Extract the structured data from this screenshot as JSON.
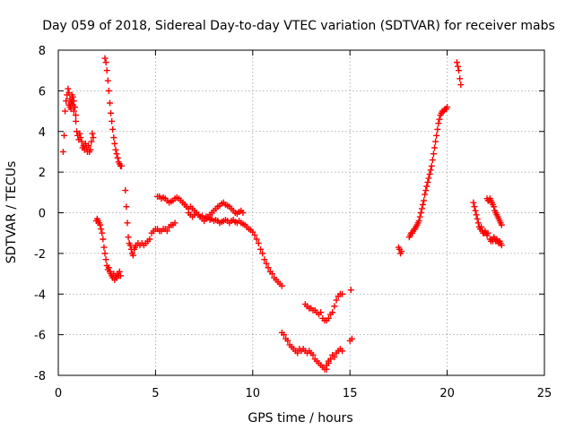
{
  "chart_data": {
    "type": "scatter",
    "title": "Day 059 of 2018, Sidereal Day-to-day VTEC variation (SDTVAR) for receiver mabs",
    "xlabel": "GPS time / hours",
    "ylabel": "SDTVAR / TECUs",
    "xlim": [
      0,
      25
    ],
    "ylim": [
      -8,
      8
    ],
    "xticks": [
      0,
      5,
      10,
      15,
      20,
      25
    ],
    "yticks": [
      -8,
      -6,
      -4,
      -2,
      0,
      2,
      4,
      6,
      8
    ],
    "xtick_labels": [
      "0",
      "5",
      "10",
      "15",
      "20",
      "25"
    ],
    "ytick_labels": [
      "-8",
      "-6",
      "-4",
      "-2",
      "0",
      "2",
      "4",
      "6",
      "8"
    ],
    "grid": true,
    "marker": "+",
    "marker_color": "#ff0000",
    "series": [
      {
        "name": "s1",
        "x": [
          0.25,
          0.3,
          0.35,
          0.4,
          0.45,
          0.5,
          0.55,
          0.6,
          0.65,
          0.7,
          0.75,
          0.8,
          0.85,
          0.9
        ],
        "y": [
          3.0,
          3.8,
          5.0,
          5.5,
          5.8,
          6.1,
          5.9,
          5.6,
          5.4,
          5.8,
          5.7,
          5.5,
          5.2,
          4.8
        ]
      },
      {
        "name": "s2",
        "x": [
          0.55,
          0.6,
          0.65,
          0.7,
          0.75,
          0.8,
          0.85,
          0.9,
          0.95,
          1.0,
          1.05,
          1.1,
          1.15,
          1.2,
          1.25,
          1.3,
          1.35,
          1.4,
          1.45,
          1.5,
          1.55,
          1.6,
          1.65,
          1.7,
          1.75,
          1.8
        ],
        "y": [
          5.3,
          5.2,
          5.1,
          5.5,
          5.3,
          5.0,
          5.2,
          4.5,
          4.0,
          3.8,
          3.6,
          3.9,
          3.7,
          3.5,
          3.2,
          3.3,
          3.1,
          3.4,
          3.2,
          3.0,
          3.3,
          3.0,
          3.1,
          3.5,
          3.9,
          3.7
        ]
      },
      {
        "name": "s3",
        "x": [
          1.95,
          2.0,
          2.05,
          2.1,
          2.15,
          2.2,
          2.25,
          2.3,
          2.35,
          2.4,
          2.45,
          2.5,
          2.55,
          2.6,
          2.65,
          2.7,
          2.75,
          2.8,
          2.85,
          2.9,
          2.95,
          3.0,
          3.05,
          3.1,
          3.15,
          3.2
        ],
        "y": [
          -0.4,
          -0.3,
          -0.4,
          -0.5,
          -0.6,
          -0.8,
          -1.0,
          -1.3,
          -1.7,
          -2.0,
          -2.3,
          -2.6,
          -2.8,
          -2.7,
          -2.9,
          -3.0,
          -3.1,
          -3.2,
          -3.0,
          -3.3,
          -3.1,
          -3.2,
          -3.0,
          -3.1,
          -2.9,
          -3.1
        ]
      },
      {
        "name": "s4",
        "x": [
          2.4,
          2.45,
          2.5,
          2.55,
          2.6,
          2.65,
          2.7,
          2.75,
          2.8,
          2.85,
          2.9,
          2.95,
          3.0,
          3.05,
          3.1,
          3.15,
          3.2,
          3.25
        ],
        "y": [
          7.6,
          7.4,
          7.0,
          6.5,
          6.0,
          5.4,
          4.9,
          4.5,
          4.1,
          3.7,
          3.4,
          3.1,
          2.9,
          2.7,
          2.5,
          2.4,
          2.3,
          2.3
        ]
      },
      {
        "name": "s5",
        "x": [
          3.45,
          3.5,
          3.55,
          3.6,
          3.65,
          3.7,
          3.75,
          3.8,
          3.85,
          3.9,
          3.95,
          4.0,
          4.1,
          4.2,
          4.3,
          4.4,
          4.5,
          4.6,
          4.7,
          4.8,
          4.9,
          5.0,
          5.1,
          5.2,
          5.3,
          5.4,
          5.5,
          5.6,
          5.7,
          5.8,
          5.9,
          6.0
        ],
        "y": [
          1.1,
          0.3,
          -0.5,
          -1.2,
          -1.5,
          -1.6,
          -1.8,
          -2.0,
          -2.1,
          -1.8,
          -1.7,
          -1.6,
          -1.5,
          -1.6,
          -1.5,
          -1.6,
          -1.5,
          -1.4,
          -1.3,
          -1.0,
          -0.9,
          -0.8,
          -0.8,
          -0.9,
          -0.9,
          -0.8,
          -0.8,
          -0.9,
          -0.7,
          -0.6,
          -0.6,
          -0.5
        ]
      },
      {
        "name": "s6",
        "x": [
          5.1,
          5.2,
          5.3,
          5.4,
          5.5,
          5.6,
          5.7,
          5.8,
          5.9,
          6.0,
          6.1,
          6.2,
          6.3,
          6.4,
          6.5,
          6.6,
          6.7,
          6.8,
          6.9,
          7.0,
          7.1,
          7.2,
          7.3,
          7.4,
          7.5,
          7.6,
          7.7,
          7.8,
          7.9,
          8.0,
          8.1,
          8.2,
          8.3,
          8.4,
          8.5,
          8.6,
          8.7,
          8.8,
          8.9,
          9.0,
          9.1,
          9.2,
          9.3,
          9.4,
          9.5
        ],
        "y": [
          0.8,
          0.8,
          0.7,
          0.75,
          0.7,
          0.6,
          0.5,
          0.55,
          0.6,
          0.7,
          0.75,
          0.7,
          0.6,
          0.5,
          0.4,
          0.3,
          0.2,
          0.3,
          0.2,
          0.1,
          0.0,
          -0.1,
          -0.2,
          -0.3,
          -0.4,
          -0.3,
          -0.2,
          -0.1,
          0.0,
          0.1,
          0.2,
          0.3,
          0.35,
          0.45,
          0.5,
          0.4,
          0.35,
          0.3,
          0.2,
          0.1,
          0.0,
          -0.05,
          0.05,
          0.1,
          0.0
        ]
      },
      {
        "name": "s7",
        "x": [
          6.4,
          6.5,
          6.6,
          6.7,
          6.8,
          6.9,
          7.0,
          7.1,
          7.2,
          7.3,
          7.4,
          7.5,
          7.6,
          7.7,
          7.8,
          7.9,
          8.0,
          8.1,
          8.2,
          8.3,
          8.4,
          8.5,
          8.6,
          8.7,
          8.8,
          8.9,
          9.0,
          9.1,
          9.2,
          9.3,
          9.4,
          9.5,
          9.6,
          9.7,
          9.8,
          9.9,
          10.0,
          10.1,
          10.2,
          10.3,
          10.4,
          10.5,
          10.6,
          10.7,
          10.8,
          10.9,
          11.0,
          11.1,
          11.2,
          11.3,
          11.4,
          11.5
        ],
        "y": [
          0.5,
          0.4,
          0.3,
          0.0,
          -0.1,
          -0.2,
          -0.1,
          0.0,
          -0.1,
          -0.2,
          -0.15,
          -0.3,
          -0.2,
          -0.25,
          -0.35,
          -0.3,
          -0.4,
          -0.35,
          -0.4,
          -0.5,
          -0.45,
          -0.4,
          -0.35,
          -0.4,
          -0.5,
          -0.4,
          -0.35,
          -0.45,
          -0.5,
          -0.4,
          -0.5,
          -0.55,
          -0.6,
          -0.7,
          -0.8,
          -0.85,
          -0.95,
          -1.1,
          -1.3,
          -1.5,
          -1.8,
          -2.0,
          -2.3,
          -2.5,
          -2.7,
          -2.9,
          -3.0,
          -3.2,
          -3.3,
          -3.4,
          -3.5,
          -3.6
        ]
      },
      {
        "name": "s8",
        "x": [
          11.5,
          11.6,
          11.7,
          11.8,
          11.9,
          12.0,
          12.1,
          12.2,
          12.3,
          12.4,
          12.5,
          12.6,
          12.7,
          12.8,
          12.9,
          13.0,
          13.1,
          13.2,
          13.3,
          13.4,
          13.5,
          13.6,
          13.7,
          13.8,
          13.9
        ],
        "y": [
          -5.9,
          -6.0,
          -6.2,
          -6.3,
          -6.5,
          -6.6,
          -6.7,
          -6.8,
          -6.9,
          -6.7,
          -6.8,
          -6.7,
          -6.8,
          -6.9,
          -6.8,
          -6.9,
          -7.0,
          -7.2,
          -7.3,
          -7.4,
          -7.5,
          -7.6,
          -7.7,
          -7.5,
          -7.3
        ]
      },
      {
        "name": "s9",
        "x": [
          13.8,
          13.9,
          14.0,
          14.1,
          14.2,
          14.3,
          14.4,
          14.5,
          14.6
        ],
        "y": [
          -7.7,
          -7.4,
          -7.2,
          -7.0,
          -7.1,
          -6.9,
          -6.8,
          -6.7,
          -6.8
        ]
      },
      {
        "name": "s10",
        "x": [
          12.7,
          12.8,
          12.9,
          13.0,
          13.1,
          13.2,
          13.3,
          13.4,
          13.5,
          13.6,
          13.7,
          13.8,
          13.9,
          14.0,
          14.1,
          14.2,
          14.3,
          14.4,
          14.5,
          14.6
        ],
        "y": [
          -4.5,
          -4.6,
          -4.7,
          -4.7,
          -4.8,
          -4.8,
          -4.9,
          -5.0,
          -4.9,
          -5.2,
          -5.3,
          -5.3,
          -5.2,
          -5.0,
          -4.9,
          -4.6,
          -4.3,
          -4.1,
          -4.0,
          -4.0
        ]
      },
      {
        "name": "s11",
        "x": [
          15.0,
          15.1
        ],
        "y": [
          -6.3,
          -6.2
        ]
      },
      {
        "name": "s12",
        "x": [
          15.05
        ],
        "y": [
          -3.8
        ]
      },
      {
        "name": "s13",
        "x": [
          17.5,
          17.55,
          17.6,
          17.65
        ],
        "y": [
          -1.7,
          -1.8,
          -2.0,
          -1.9
        ]
      },
      {
        "name": "s14",
        "x": [
          18.05,
          18.1,
          18.15,
          18.2,
          18.25,
          18.3,
          18.35,
          18.4,
          18.45,
          18.5,
          18.55,
          18.6,
          18.65,
          18.7,
          18.75,
          18.8,
          18.85,
          18.9,
          18.95,
          19.0,
          19.05,
          19.1,
          19.15,
          19.2,
          19.25,
          19.3,
          19.35,
          19.4,
          19.45,
          19.5,
          19.55,
          19.6,
          19.65,
          19.7,
          19.75,
          19.8,
          19.85,
          19.9,
          19.95,
          20.0
        ],
        "y": [
          -1.2,
          -1.1,
          -1.0,
          -1.0,
          -0.9,
          -0.8,
          -0.8,
          -0.7,
          -0.6,
          -0.5,
          -0.4,
          -0.2,
          0.0,
          0.2,
          0.4,
          0.6,
          0.9,
          1.1,
          1.3,
          1.5,
          1.7,
          1.9,
          2.1,
          2.3,
          2.6,
          2.9,
          3.2,
          3.5,
          3.8,
          4.1,
          4.4,
          4.6,
          4.8,
          4.9,
          5.0,
          5.0,
          5.05,
          5.1,
          5.1,
          5.2
        ]
      },
      {
        "name": "s15",
        "x": [
          20.5,
          20.55,
          20.6,
          20.65,
          20.7
        ],
        "y": [
          7.4,
          7.2,
          7.0,
          6.6,
          6.3
        ]
      },
      {
        "name": "s16",
        "x": [
          21.35,
          21.4,
          21.45,
          21.5,
          21.55,
          21.6,
          21.65,
          21.7,
          21.75,
          21.8,
          21.85,
          21.9,
          21.95,
          22.0,
          22.05,
          22.1
        ],
        "y": [
          0.5,
          0.3,
          0.1,
          -0.1,
          -0.3,
          -0.5,
          -0.7,
          -0.8,
          -0.7,
          -0.9,
          -1.0,
          -1.0,
          -0.9,
          -1.0,
          -1.1,
          -1.0
        ]
      },
      {
        "name": "s17",
        "x": [
          22.05,
          22.1,
          22.15,
          22.2,
          22.25,
          22.3,
          22.35,
          22.4,
          22.45,
          22.5,
          22.55,
          22.6,
          22.65,
          22.7,
          22.75,
          22.8
        ],
        "y": [
          0.7,
          0.6,
          0.6,
          0.7,
          0.6,
          0.5,
          0.4,
          0.3,
          0.1,
          0.0,
          -0.1,
          -0.2,
          -0.3,
          -0.4,
          -0.5,
          -0.6
        ]
      },
      {
        "name": "s18",
        "x": [
          22.2,
          22.25,
          22.3,
          22.35,
          22.4,
          22.45,
          22.5,
          22.55,
          22.6,
          22.65,
          22.7,
          22.75,
          22.8
        ],
        "y": [
          -1.3,
          -1.4,
          -1.3,
          -1.4,
          -1.2,
          -1.3,
          -1.4,
          -1.3,
          -1.4,
          -1.5,
          -1.4,
          -1.5,
          -1.6
        ]
      }
    ]
  }
}
